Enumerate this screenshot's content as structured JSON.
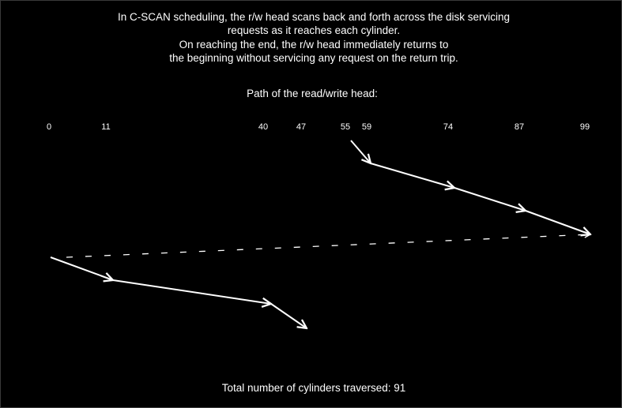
{
  "description": {
    "line1": "In C-SCAN scheduling, the r/w head scans back and forth across the disk servicing",
    "line2": "requests as it reaches each cylinder.",
    "line3": "On reaching the end, the r/w head immediately returns to",
    "line4": "the beginning without servicing any request on the return trip."
  },
  "path_title": "Path of the read/write head:",
  "cylinders": [
    "0",
    "11",
    "40",
    "47",
    "55",
    "59",
    "74",
    "87",
    "99"
  ],
  "service_order": [
    55,
    59,
    74,
    87,
    99,
    0,
    11,
    40,
    47
  ],
  "return_trip": {
    "from": 99,
    "to": 0,
    "style": "dashed"
  },
  "total_text": "Total number of cylinders traversed: 91",
  "colors": {
    "background": "#000000",
    "foreground": "#ffffff"
  }
}
